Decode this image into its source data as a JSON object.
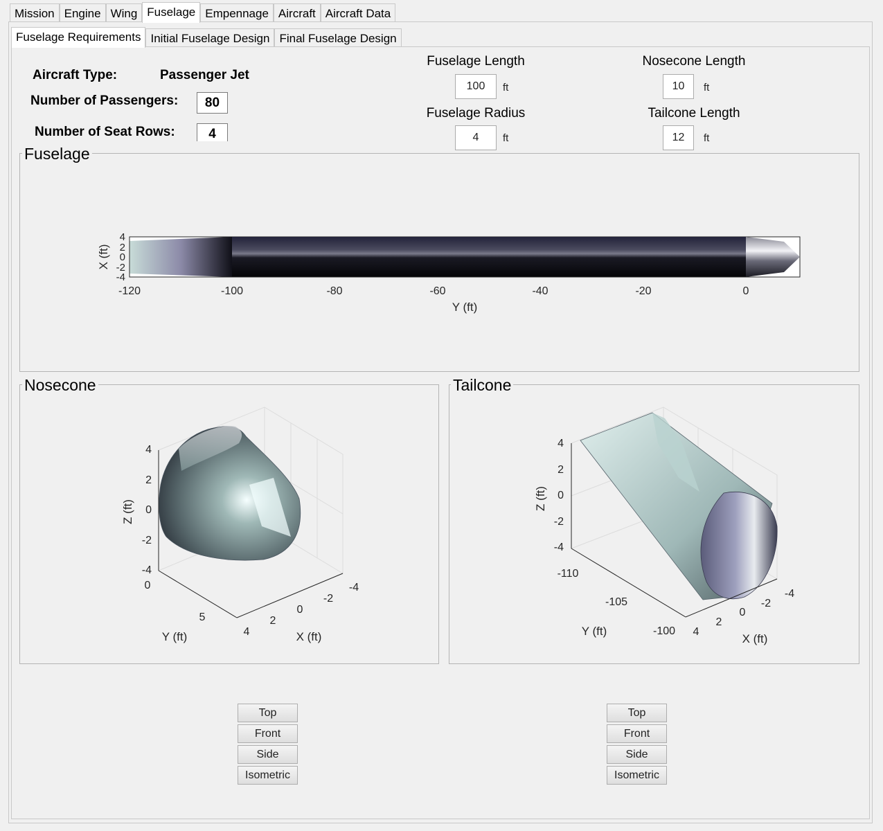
{
  "main_tabs": [
    "Mission",
    "Engine",
    "Wing",
    "Fuselage",
    "Empennage",
    "Aircraft",
    "Aircraft Data"
  ],
  "sub_tabs": [
    "Fuselage Requirements",
    "Initial Fuselage Design",
    "Final Fuselage Design"
  ],
  "requirements": {
    "aircraft_type_label": "Aircraft Type:",
    "aircraft_type_value": "Passenger Jet",
    "passengers_label": "Number of Passengers:",
    "passengers_value": "80",
    "seat_rows_label": "Number of Seat Rows:",
    "seat_rows_value": "4"
  },
  "fields": {
    "fuselage_length": {
      "label": "Fuselage Length",
      "value": "100",
      "unit": "ft"
    },
    "fuselage_radius": {
      "label": "Fuselage Radius",
      "value": "4",
      "unit": "ft"
    },
    "nosecone_length": {
      "label": "Nosecone Length",
      "value": "10",
      "unit": "ft"
    },
    "tailcone_length": {
      "label": "Tailcone Length",
      "value": "12",
      "unit": "ft"
    }
  },
  "panels": {
    "fuselage": {
      "title": "Fuselage",
      "xlabel": "Y (ft)",
      "ylabel": "X (ft)",
      "xticks": [
        "-120",
        "-100",
        "-80",
        "-60",
        "-40",
        "-20",
        "0"
      ],
      "yticks": [
        "4",
        "2",
        "0",
        "-2",
        "-4"
      ]
    },
    "nosecone": {
      "title": "Nosecone",
      "zlabel": "Z (ft)",
      "ylabel": "Y (ft)",
      "xlabel": "X (ft)",
      "zticks": [
        "4",
        "2",
        "0",
        "-2",
        "-4"
      ],
      "yticks": [
        "0",
        "5"
      ],
      "xticks": [
        "4",
        "2",
        "0",
        "-2",
        "-4"
      ]
    },
    "tailcone": {
      "title": "Tailcone",
      "zlabel": "Z (ft)",
      "ylabel": "Y (ft)",
      "xlabel": "X (ft)",
      "zticks": [
        "4",
        "2",
        "0",
        "-2",
        "-4"
      ],
      "yticks": [
        "-110",
        "-105",
        "-100"
      ],
      "xticks": [
        "4",
        "2",
        "0",
        "-2",
        "-4"
      ]
    }
  },
  "view_buttons": [
    "Top",
    "Front",
    "Side",
    "Isometric"
  ]
}
